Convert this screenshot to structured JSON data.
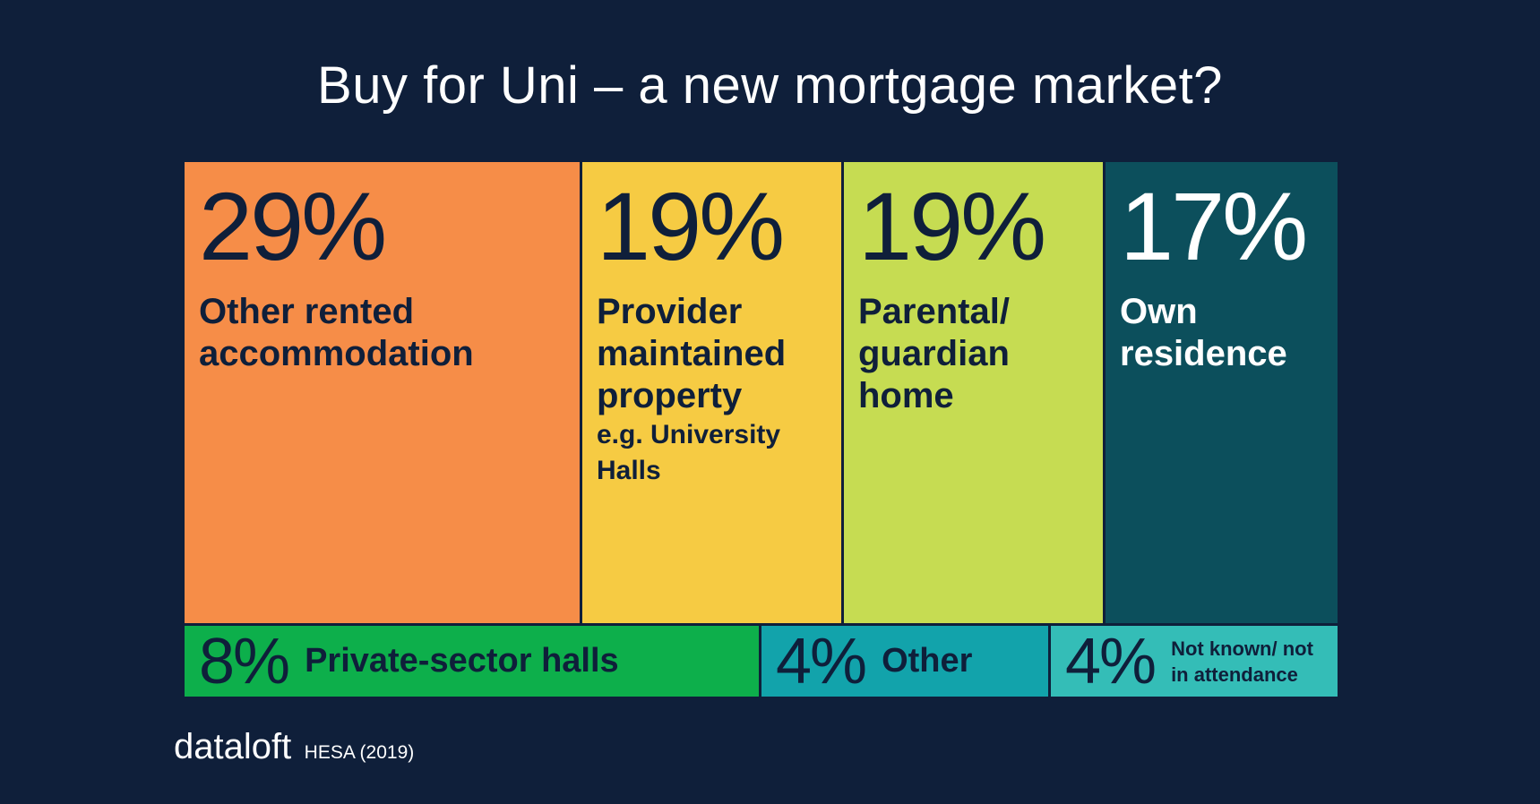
{
  "title": "Buy for Uni – a new mortgage market?",
  "footer": {
    "brand": "dataloft",
    "source": "HESA (2019)"
  },
  "chart_data": {
    "type": "treemap",
    "title": "Buy for Uni – a new mortgage market?",
    "items": [
      {
        "value": 29,
        "pct_label": "29%",
        "label": "Other rented accommodation",
        "sublabel": "",
        "color": "#f68d48",
        "text_color": "#0f1f3a"
      },
      {
        "value": 19,
        "pct_label": "19%",
        "label": "Provider maintained property",
        "sublabel": "e.g. University Halls",
        "color": "#f6cb43",
        "text_color": "#0f1f3a"
      },
      {
        "value": 19,
        "pct_label": "19%",
        "label": "Parental/ guardian home",
        "sublabel": "",
        "color": "#c6dc52",
        "text_color": "#0f1f3a"
      },
      {
        "value": 17,
        "pct_label": "17%",
        "label": "Own residence",
        "sublabel": "",
        "color": "#0c4f5c",
        "text_color": "#ffffff"
      },
      {
        "value": 8,
        "pct_label": "8%",
        "label": "Private-sector halls",
        "sublabel": "",
        "color": "#0daf4b",
        "text_color": "#0f1f3a"
      },
      {
        "value": 4,
        "pct_label": "4%",
        "label": "Other",
        "sublabel": "",
        "color": "#12a3ab",
        "text_color": "#0f1f3a"
      },
      {
        "value": 4,
        "pct_label": "4%",
        "label": "Not known/ not in attendance",
        "sublabel": "",
        "color": "#34bdb7",
        "text_color": "#0f1f3a"
      }
    ]
  }
}
